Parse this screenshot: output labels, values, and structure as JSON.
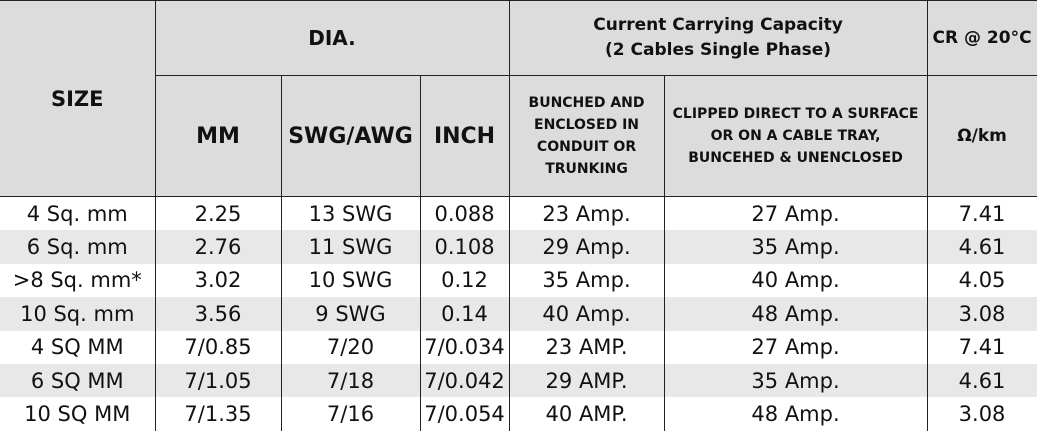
{
  "header": {
    "size": "SIZE",
    "dia": "DIA.",
    "ccc_line1": "Current Carrying Capacity",
    "ccc_line2": "(2 Cables Single Phase)",
    "cr": "CR @ 20°C",
    "mm": "MM",
    "swg": "SWG/AWG",
    "inch": "INCH",
    "bunched_lines": [
      "BUNCHED AND",
      "ENCLOSED IN",
      "CONDUIT OR",
      "TRUNKING"
    ],
    "clipped_lines": [
      "CLIPPED DIRECT TO A SURFACE",
      "OR ON A CABLE TRAY,",
      "BUNCEHED & UNENCLOSED"
    ],
    "ohm": "Ω/km"
  },
  "rows": [
    {
      "size": "4 Sq. mm",
      "mm": "2.25",
      "swg": "13 SWG",
      "inch": "0.088",
      "bunched": "23 Amp.",
      "clipped": "27 Amp.",
      "cr": "7.41"
    },
    {
      "size": "6 Sq. mm",
      "mm": "2.76",
      "swg": "11 SWG",
      "inch": "0.108",
      "bunched": "29 Amp.",
      "clipped": "35 Amp.",
      "cr": "4.61"
    },
    {
      "size": ">8 Sq. mm*",
      "mm": "3.02",
      "swg": "10 SWG",
      "inch": "0.12",
      "bunched": "35 Amp.",
      "clipped": "40 Amp.",
      "cr": "4.05"
    },
    {
      "size": "10 Sq. mm",
      "mm": "3.56",
      "swg": "9 SWG",
      "inch": "0.14",
      "bunched": "40 Amp.",
      "clipped": "48 Amp.",
      "cr": "3.08"
    },
    {
      "size": "4 SQ MM",
      "mm": "7/0.85",
      "swg": "7/20",
      "inch": "7/0.034",
      "bunched": "23 AMP.",
      "clipped": "27 Amp.",
      "cr": "7.41"
    },
    {
      "size": "6 SQ MM",
      "mm": "7/1.05",
      "swg": "7/18",
      "inch": "7/0.042",
      "bunched": "29 AMP.",
      "clipped": "35 Amp.",
      "cr": "4.61"
    },
    {
      "size": "10 SQ MM",
      "mm": "7/1.35",
      "swg": "7/16",
      "inch": "7/0.054",
      "bunched": "40 AMP.",
      "clipped": "48 Amp.",
      "cr": "3.08"
    }
  ]
}
